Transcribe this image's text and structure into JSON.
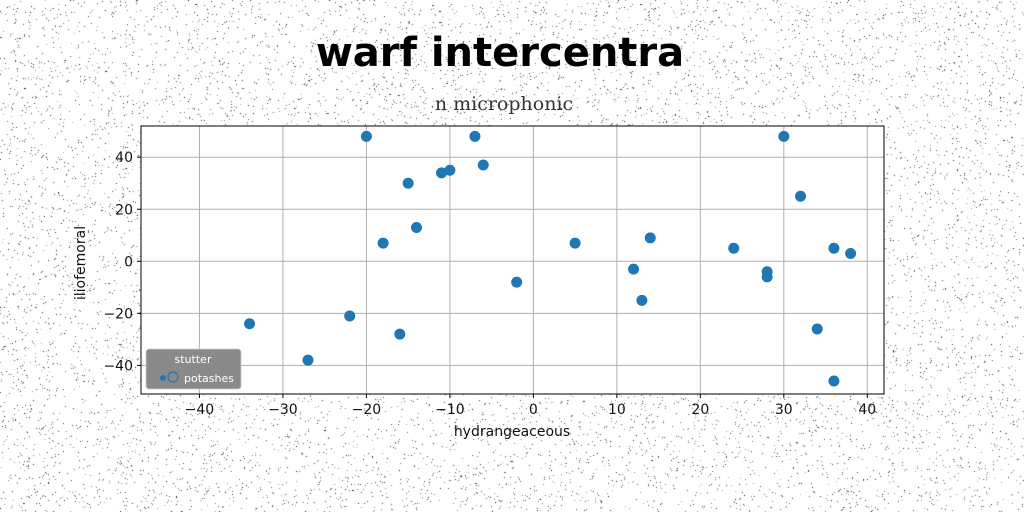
{
  "figure": {
    "suptitle": "warf intercentra"
  },
  "chart_data": {
    "type": "scatter",
    "title": "n microphonic",
    "xlabel": "hydrangeaceous",
    "ylabel": "iliofemoral",
    "xlim": [
      -47,
      42
    ],
    "ylim": [
      -51,
      52
    ],
    "xticks": [
      -40,
      -30,
      -20,
      -10,
      0,
      10,
      20,
      30,
      40
    ],
    "yticks": [
      -40,
      -20,
      0,
      20,
      40
    ],
    "xtick_labels": [
      "−40",
      "−30",
      "−20",
      "−10",
      "0",
      "10",
      "20",
      "30",
      "40"
    ],
    "ytick_labels": [
      "−40",
      "−20",
      "0",
      "20",
      "40"
    ],
    "grid": true,
    "legend": {
      "title": "stutter",
      "location": "lower-left"
    },
    "series": [
      {
        "name": "potashes",
        "color": "#1f77b4",
        "points": [
          [
            -34,
            -24
          ],
          [
            -27,
            -38
          ],
          [
            -22,
            -21
          ],
          [
            -20,
            48
          ],
          [
            -18,
            7
          ],
          [
            -16,
            -28
          ],
          [
            -15,
            30
          ],
          [
            -14,
            13
          ],
          [
            -11,
            34
          ],
          [
            -10,
            35
          ],
          [
            -7,
            48
          ],
          [
            -6,
            37
          ],
          [
            -2,
            -8
          ],
          [
            5,
            7
          ],
          [
            12,
            -3
          ],
          [
            13,
            -15
          ],
          [
            14,
            9
          ],
          [
            24,
            5
          ],
          [
            28,
            -4
          ],
          [
            28,
            -6
          ],
          [
            30,
            48
          ],
          [
            32,
            25
          ],
          [
            34,
            -26
          ],
          [
            36,
            5
          ],
          [
            36,
            -46
          ],
          [
            38,
            3
          ]
        ]
      }
    ]
  }
}
